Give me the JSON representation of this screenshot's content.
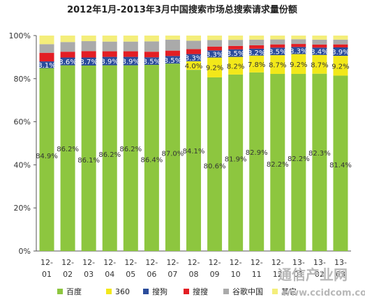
{
  "chart_data": {
    "type": "bar",
    "stacked": true,
    "title": "2012年1月-2013年3月中国搜索市场总搜索请求量份额",
    "categories": [
      [
        "12-",
        "01"
      ],
      [
        "12-",
        "02"
      ],
      [
        "12-",
        "03"
      ],
      [
        "12-",
        "04"
      ],
      [
        "12-",
        "05"
      ],
      [
        "12-",
        "06"
      ],
      [
        "12-",
        "07"
      ],
      [
        "12-",
        "08"
      ],
      [
        "12-",
        "09"
      ],
      [
        "12-",
        "10"
      ],
      [
        "12-",
        "11"
      ],
      [
        "12-",
        "12"
      ],
      [
        "13-",
        "01"
      ],
      [
        "13-",
        "02"
      ],
      [
        "13-",
        "03"
      ]
    ],
    "ylim": [
      0,
      100
    ],
    "yticks": [
      "0%",
      "20%",
      "40%",
      "60%",
      "80%",
      "100%"
    ],
    "series": [
      {
        "name": "百度",
        "color": "#8dc63f",
        "values": [
          84.9,
          86.2,
          86.1,
          86.2,
          86.2,
          86.4,
          87.0,
          84.1,
          80.6,
          81.9,
          82.9,
          82.2,
          82.2,
          82.3,
          81.4
        ],
        "labels": [
          "84.9%",
          "86.2%",
          "86.1%",
          "86.2%",
          "86.2%",
          "86.4%",
          "87.0%",
          "84.1%",
          "80.6%",
          "81.9%",
          "82.9%",
          "82.2%",
          "82.2%",
          "82.3%",
          "81.4%"
        ]
      },
      {
        "name": "360",
        "color": "#f2e81a",
        "values": [
          0,
          0,
          0,
          0,
          0,
          0,
          0,
          4.0,
          9.2,
          8.2,
          7.8,
          8.7,
          9.2,
          8.7,
          9.2
        ],
        "labels": [
          "",
          "",
          "",
          "",
          "",
          "",
          "",
          "4.0%",
          "9.2%",
          "8.2%",
          "7.8%",
          "8.7%",
          "9.2%",
          "8.7%",
          "9.2%"
        ]
      },
      {
        "name": "搜狗",
        "color": "#2b4c9b",
        "values": [
          3.1,
          3.6,
          3.7,
          3.9,
          3.9,
          3.5,
          3.5,
          3.3,
          3.3,
          3.5,
          3.2,
          3.5,
          3.3,
          3.4,
          3.9
        ],
        "labels": [
          "3.1%",
          "3.6%",
          "3.7%",
          "3.9%",
          "3.9%",
          "3.5%",
          "3.5%",
          "3.3%",
          "3.3%",
          "3.5%",
          "3.2%",
          "3.5%",
          "3.3%",
          "3.4%",
          "3.9%"
        ]
      },
      {
        "name": "搜搜",
        "color": "#e31e24",
        "values": [
          4.0,
          2.7,
          3.0,
          2.6,
          2.6,
          2.6,
          2.5,
          2.3,
          1.8,
          1.6,
          1.6,
          1.5,
          1.4,
          1.4,
          1.4
        ],
        "labels": []
      },
      {
        "name": "谷歌中国",
        "color": "#aaaaaa",
        "values": [
          4.0,
          4.5,
          4.6,
          4.5,
          4.5,
          4.8,
          5.1,
          3.9,
          3.0,
          2.8,
          2.6,
          2.3,
          2.2,
          2.3,
          2.2
        ],
        "labels": []
      },
      {
        "name": "其它",
        "color": "#f4ee7a",
        "values": [
          4.0,
          3.0,
          2.6,
          2.8,
          2.8,
          2.7,
          1.9,
          2.4,
          2.1,
          2.0,
          1.9,
          1.8,
          1.7,
          1.9,
          1.9
        ],
        "labels": []
      }
    ],
    "grid": false,
    "legend_position": "bottom"
  },
  "watermark": {
    "text": "通信产业网",
    "url": "www.ccidcom.com"
  }
}
